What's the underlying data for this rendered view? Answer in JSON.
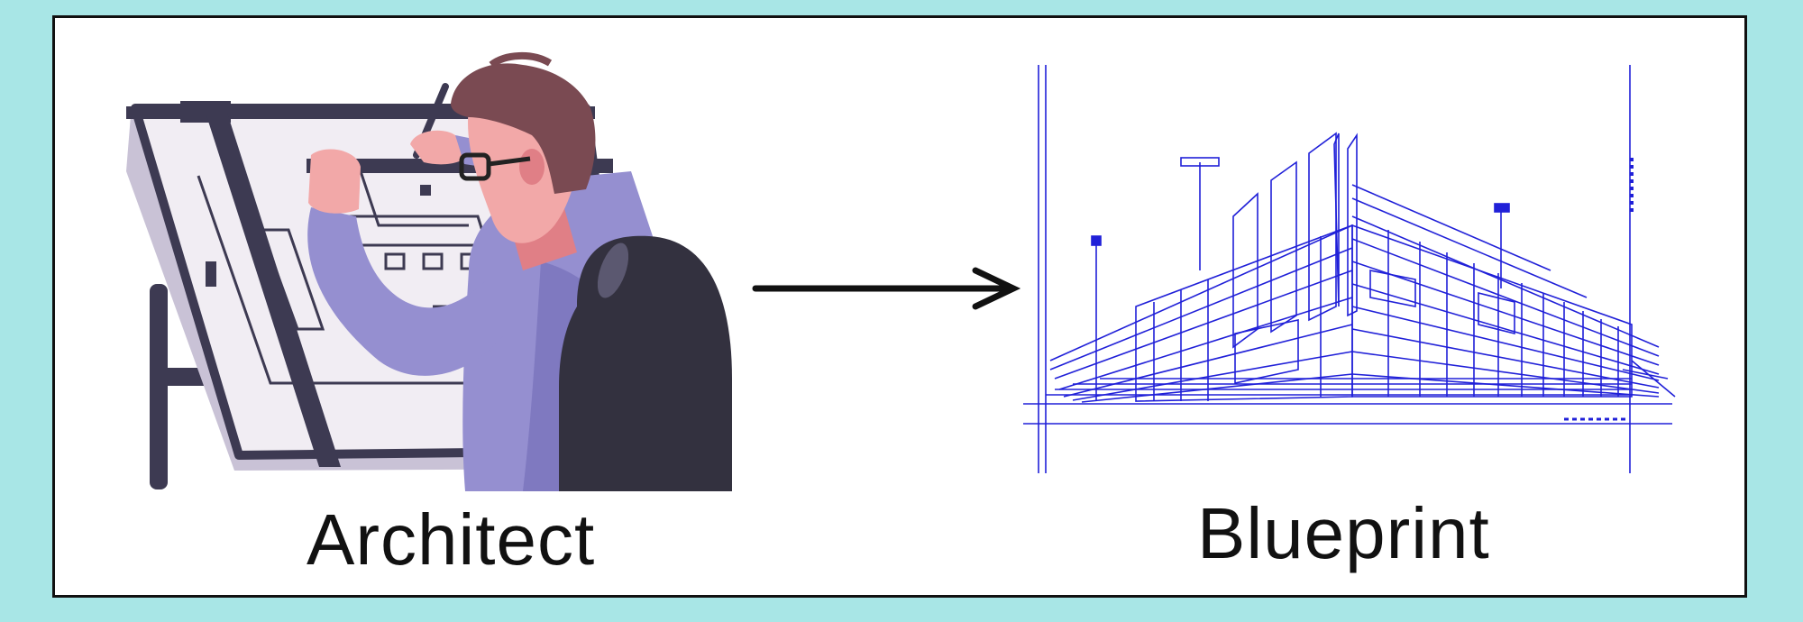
{
  "labels": {
    "architect": "Architect",
    "blueprint": "Blueprint"
  },
  "colors": {
    "background": "#a8e6e6",
    "frame_fill": "#ffffff",
    "frame_border": "#111111",
    "blueprint_line": "#2020d8",
    "board_dark": "#3d3a52",
    "board_light": "#f1edf3",
    "shirt": "#958fd0",
    "hair": "#7a4a52",
    "skin": "#f2a8a8",
    "chair": "#33313f"
  },
  "icons": [
    "architect-illustration",
    "arrow-right-icon",
    "blueprint-building-drawing"
  ]
}
